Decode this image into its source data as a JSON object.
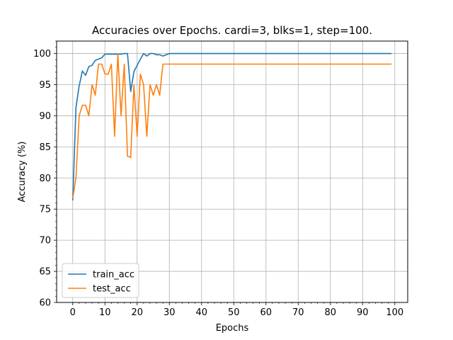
{
  "chart_data": {
    "type": "line",
    "title": "Accuracies over Epochs. cardi=3, blks=1, step=100.",
    "xlabel": "Epochs",
    "ylabel": "Accuracy (%)",
    "xlim": [
      -5,
      104
    ],
    "ylim": [
      60,
      102
    ],
    "xticks": [
      0,
      10,
      20,
      30,
      40,
      50,
      60,
      70,
      80,
      90,
      100
    ],
    "yticks": [
      60,
      65,
      70,
      75,
      80,
      85,
      90,
      95,
      100
    ],
    "grid": true,
    "legend_position": "lower-left",
    "series": [
      {
        "name": "train_acc",
        "color": "#1f77b4",
        "points": [
          [
            0,
            76.4
          ],
          [
            1,
            91.3
          ],
          [
            2,
            94.8
          ],
          [
            3,
            97.2
          ],
          [
            4,
            96.5
          ],
          [
            5,
            97.9
          ],
          [
            6,
            98.1
          ],
          [
            7,
            98.9
          ],
          [
            8,
            99.1
          ],
          [
            9,
            99.3
          ],
          [
            10,
            99.9
          ],
          [
            11,
            99.9
          ],
          [
            12,
            99.9
          ],
          [
            13,
            99.9
          ],
          [
            14,
            99.9
          ],
          [
            15,
            99.9
          ],
          [
            16,
            100
          ],
          [
            17,
            100
          ],
          [
            18,
            93.9
          ],
          [
            19,
            97.1
          ],
          [
            20,
            98.1
          ],
          [
            21,
            99.1
          ],
          [
            22,
            100
          ],
          [
            23,
            99.6
          ],
          [
            24,
            100
          ],
          [
            25,
            100
          ],
          [
            26,
            99.8
          ],
          [
            27,
            99.8
          ],
          [
            28,
            99.6
          ],
          [
            29,
            99.8
          ],
          [
            30,
            100
          ],
          [
            99,
            100
          ]
        ]
      },
      {
        "name": "test_acc",
        "color": "#ff7f0e",
        "points": [
          [
            0,
            76.7
          ],
          [
            1,
            80.0
          ],
          [
            2,
            90.0
          ],
          [
            3,
            91.7
          ],
          [
            4,
            91.7
          ],
          [
            5,
            90.0
          ],
          [
            6,
            95.0
          ],
          [
            7,
            93.3
          ],
          [
            8,
            98.3
          ],
          [
            9,
            98.3
          ],
          [
            10,
            96.7
          ],
          [
            11,
            96.7
          ],
          [
            12,
            98.3
          ],
          [
            13,
            86.7
          ],
          [
            14,
            100
          ],
          [
            15,
            90.0
          ],
          [
            16,
            98.3
          ],
          [
            17,
            83.5
          ],
          [
            18,
            83.3
          ],
          [
            19,
            95.0
          ],
          [
            20,
            86.7
          ],
          [
            21,
            96.7
          ],
          [
            22,
            95.0
          ],
          [
            23,
            86.7
          ],
          [
            24,
            95.0
          ],
          [
            25,
            93.3
          ],
          [
            26,
            95.0
          ],
          [
            27,
            93.3
          ],
          [
            28,
            98.3
          ],
          [
            99,
            98.3
          ]
        ]
      }
    ]
  }
}
